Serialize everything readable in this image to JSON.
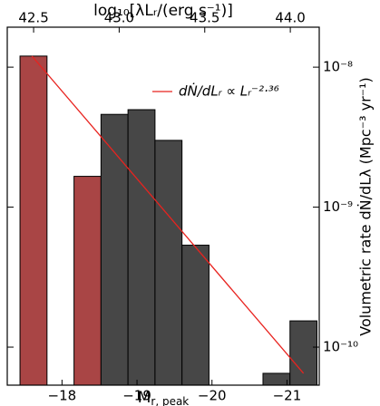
{
  "chart_data": {
    "type": "histogram",
    "xlabel": {
      "main": "M",
      "sub": "r, peak"
    },
    "x2label": "log₁₀[λLᵣ/(erg s⁻¹)]",
    "ylabel": "Volumetric rate dṄ/dLλ (Mpc⁻³ yr⁻¹)",
    "bins": [
      -17.44,
      -17.8,
      -18.16,
      -18.52,
      -18.88,
      -19.24,
      -19.6,
      -19.96,
      -20.32,
      -20.68,
      -21.04,
      -21.4
    ],
    "series": [
      {
        "color": "#a94545",
        "values": [
          1.2e-08,
          null,
          1.66e-09,
          null,
          null,
          null,
          null,
          null,
          null,
          null,
          null
        ]
      },
      {
        "color": "#474747",
        "values": [
          null,
          null,
          null,
          4.6e-09,
          4.97e-09,
          3e-09,
          5.35e-10,
          null,
          null,
          6.5e-11,
          1.54e-10
        ]
      }
    ],
    "fit": {
      "name": "dṄ/dLᵣ ∝ Lᵣ⁻²·³⁶",
      "color": "#e8231f",
      "x": [
        -17.6,
        -21.22
      ],
      "values": [
        1.2e-08,
        6.5e-11
      ]
    },
    "xlim": [
      -17.27,
      -21.43
    ],
    "xticks": [
      {
        "value": -18,
        "label": "−18"
      },
      {
        "value": -19,
        "label": "−19"
      },
      {
        "value": -20,
        "label": "−20"
      },
      {
        "value": -21,
        "label": "−21"
      }
    ],
    "x2lim": [
      42.346,
      44.169
    ],
    "x2ticks": [
      42.5,
      {
        "value": 43.0,
        "label": "43.0"
      },
      43.5,
      {
        "value": 44.0,
        "label": "44.0"
      }
    ],
    "ylim": [
      5.35e-11,
      1.93e-08
    ],
    "yticks": [
      {
        "value": 1e-10,
        "label": "10⁻¹⁰"
      },
      {
        "value": 1e-09,
        "label": "10⁻⁹"
      },
      {
        "value": 1e-08,
        "label": "10⁻⁸"
      }
    ],
    "log_y": true,
    "legend": "upper right"
  }
}
